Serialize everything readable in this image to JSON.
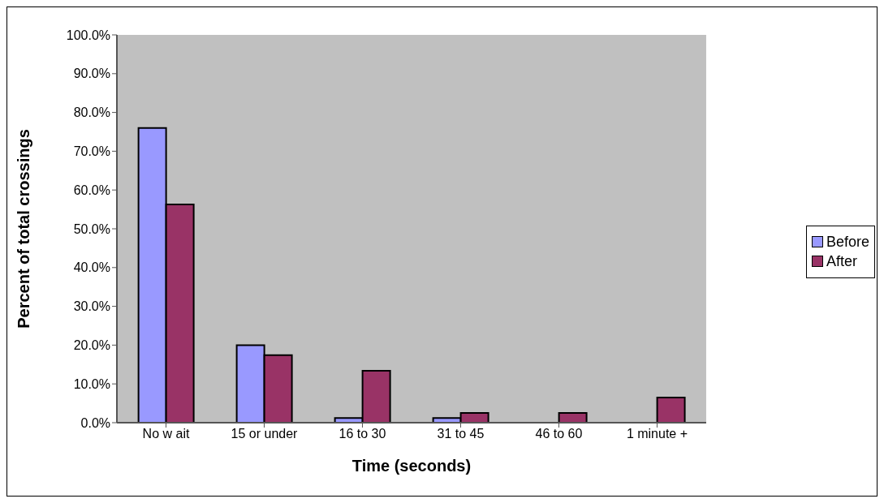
{
  "chart_data": {
    "type": "bar",
    "xlabel": "Time (seconds)",
    "ylabel": "Percent of total crossings",
    "categories": [
      "No w ait",
      "15 or under",
      "16 to 30",
      "31 to 45",
      "46 to 60",
      "1 minute +"
    ],
    "series": [
      {
        "name": "Before",
        "color": "#9999ff",
        "values": [
          76.0,
          20.0,
          1.2,
          1.2,
          0,
          0
        ]
      },
      {
        "name": "After",
        "color": "#993366",
        "values": [
          56.3,
          17.4,
          13.4,
          2.5,
          2.5,
          6.5
        ]
      }
    ],
    "ylim": [
      0,
      100
    ],
    "yticks": [
      {
        "value": 0,
        "label": "0.0%"
      },
      {
        "value": 10,
        "label": "10.0%"
      },
      {
        "value": 20,
        "label": "20.0%"
      },
      {
        "value": 30,
        "label": "30.0%"
      },
      {
        "value": 40,
        "label": "40.0%"
      },
      {
        "value": 50,
        "label": "50.0%"
      },
      {
        "value": 60,
        "label": "60.0%"
      },
      {
        "value": 70,
        "label": "70.0%"
      },
      {
        "value": 80,
        "label": "80.0%"
      },
      {
        "value": 90,
        "label": "90.0%"
      },
      {
        "value": 100,
        "label": "100.0%"
      }
    ],
    "grid": false,
    "legend": "right"
  }
}
